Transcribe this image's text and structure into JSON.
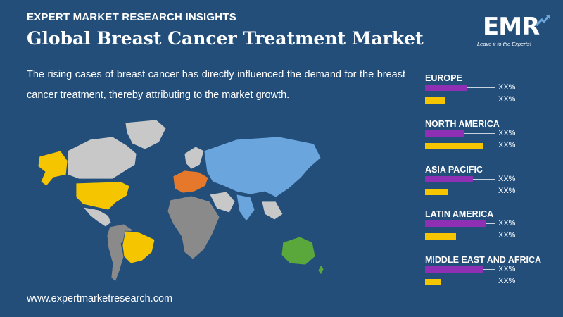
{
  "header": {
    "kicker": "EXPERT MARKET RESEARCH INSIGHTS",
    "title": "Global Breast Cancer Treatment Market"
  },
  "description": "The rising cases of breast cancer has directly influenced the demand for the breast cancer treatment, thereby attributing to the market growth.",
  "footer": {
    "url": "www.expertmarketresearch.com"
  },
  "logo": {
    "mark": "EMR",
    "tagline": "Leave it to the Experts!"
  },
  "colors": {
    "background": "#234e7a",
    "purple_bar": "#8e2fb4",
    "yellow_bar": "#f5c500",
    "north_america": "#f5c500",
    "europe": "#e5782b",
    "asia_pacific": "#6aa6dd",
    "oceania": "#5aa83c",
    "latin_america": "#f5c500",
    "other_land": "#c8c8c8",
    "dark_land": "#8a8a8a"
  },
  "regions": [
    {
      "name": "EUROPE",
      "value_1": "XX%",
      "value_2": "XX%",
      "level_1": 0.6,
      "level_2": 0.28
    },
    {
      "name": "NORTH AMERICA",
      "value_1": "XX%",
      "value_2": "XX%",
      "level_1": 0.55,
      "level_2": 0.83
    },
    {
      "name": "ASIA PACIFIC",
      "value_1": "XX%",
      "value_2": "XX%",
      "level_1": 0.68,
      "level_2": 0.32
    },
    {
      "name": "LATIN AMERICA",
      "value_1": "XX%",
      "value_2": "XX%",
      "level_1": 0.86,
      "level_2": 0.44
    },
    {
      "name": "MIDDLE EAST AND AFRICA",
      "value_1": "XX%",
      "value_2": "XX%",
      "level_1": 0.83,
      "level_2": 0.23
    }
  ]
}
